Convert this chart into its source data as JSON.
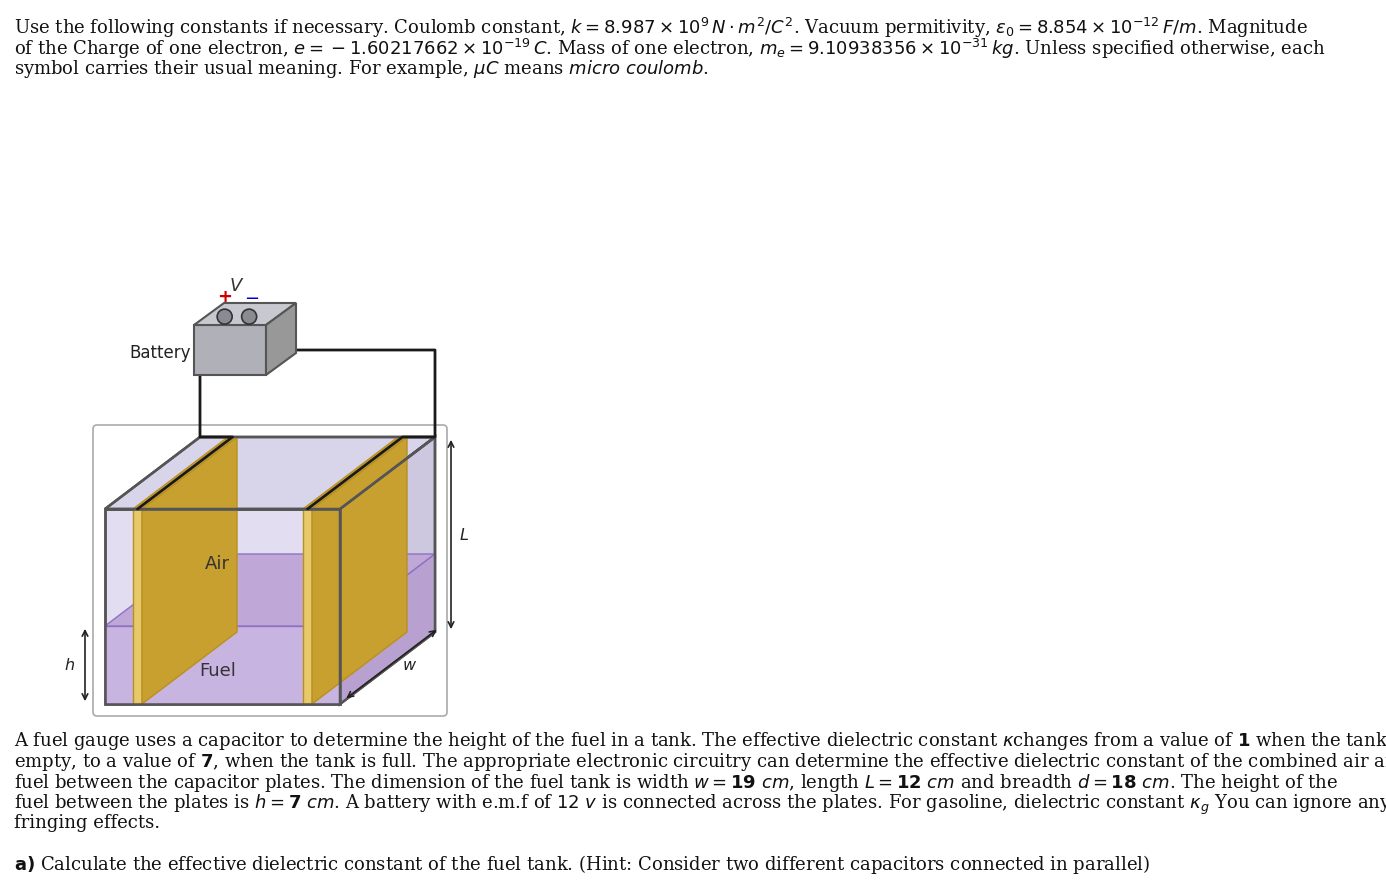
{
  "bg_color": "#ffffff",
  "diagram": {
    "tank_color": "#ddd5ee",
    "plate_color": "#e8c96a",
    "fuel_color": "#c8b4e0",
    "wire_color": "#1a1a1a",
    "battery_color_front": "#b0b0b8",
    "battery_color_top": "#c8c8d0",
    "battery_color_right": "#989898",
    "border_color": "#555555",
    "plus_color": "#cc0000",
    "minus_color": "#0000cc",
    "annotation_color": "#222222",
    "air_label": "Air",
    "fuel_label": "Fuel",
    "battery_label": "Battery"
  }
}
